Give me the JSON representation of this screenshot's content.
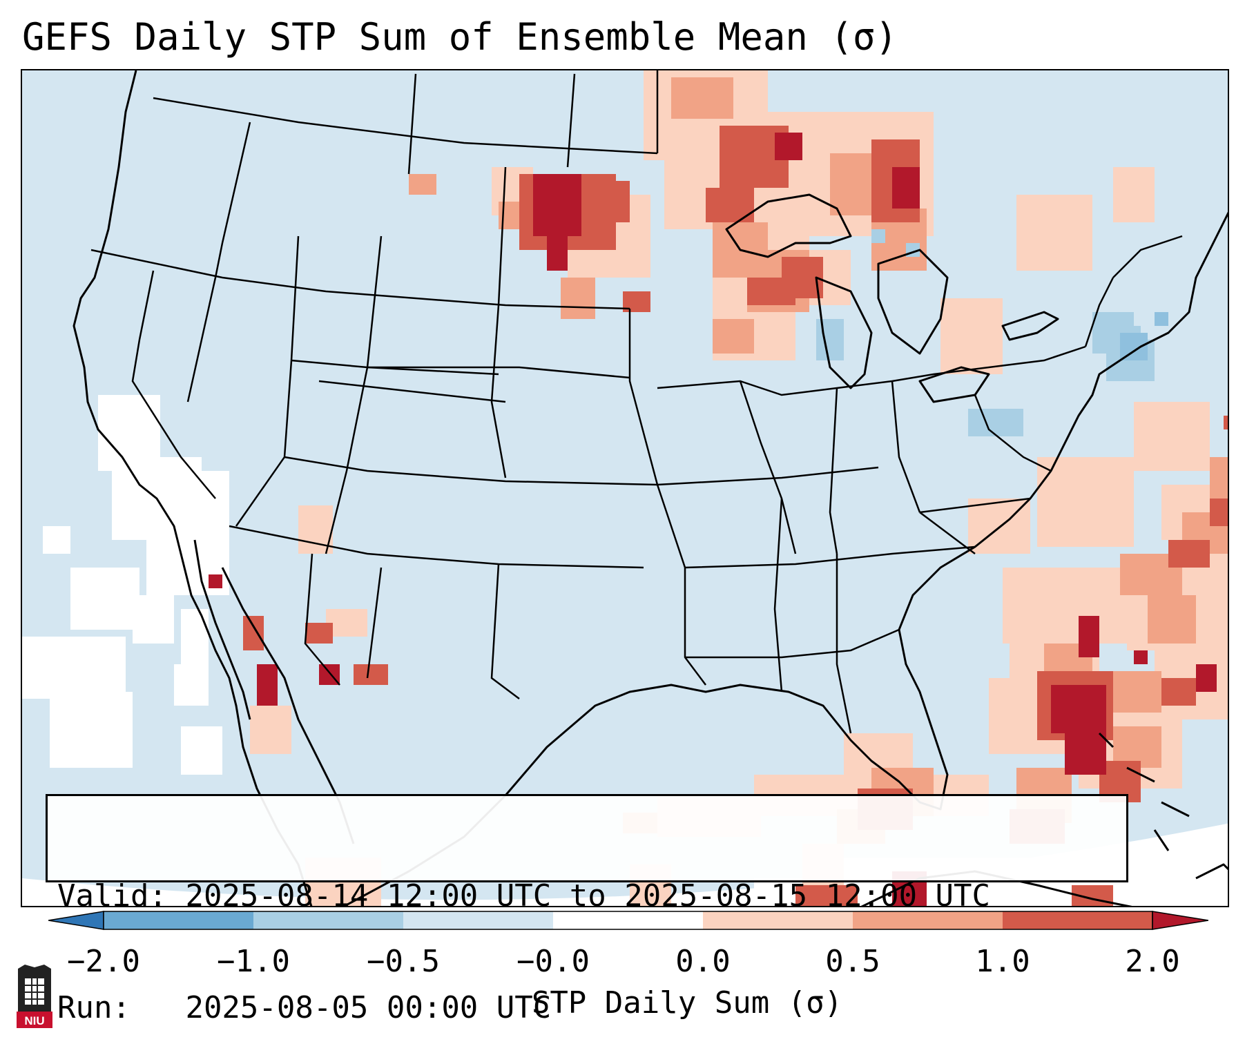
{
  "title": "GEFS Daily STP Sum of Ensemble Mean (σ)",
  "valid_label": "Valid:",
  "valid_value": "2025-08-14 12:00 UTC to 2025-08-15 12:00 UTC",
  "run_label": "Run:",
  "run_value": "2025-08-05 00:00 UTC",
  "colorbar": {
    "label": "STP Daily Sum (σ)",
    "ticks": [
      "−2.0",
      "−1.0",
      "−0.5",
      "−0.0",
      "0.0",
      "0.5",
      "1.0",
      "2.0"
    ],
    "colors": [
      "#2f76b6",
      "#6aa9d2",
      "#a9cfe4",
      "#d4e6f1",
      "#ffffff",
      "#fbd3c0",
      "#f1a386",
      "#d35a4a",
      "#b2182b"
    ]
  },
  "colors": {
    "ocean_background": "#d4e6f1",
    "neutral": "#ffffff",
    "light_red": "#fbd3c0",
    "mid_red": "#f1a386",
    "dark_red": "#d35a4a",
    "deep_red": "#b2182b",
    "light_blue": "#a9cfe4",
    "mid_blue": "#8fc0de"
  },
  "logo_text": "NIU"
}
